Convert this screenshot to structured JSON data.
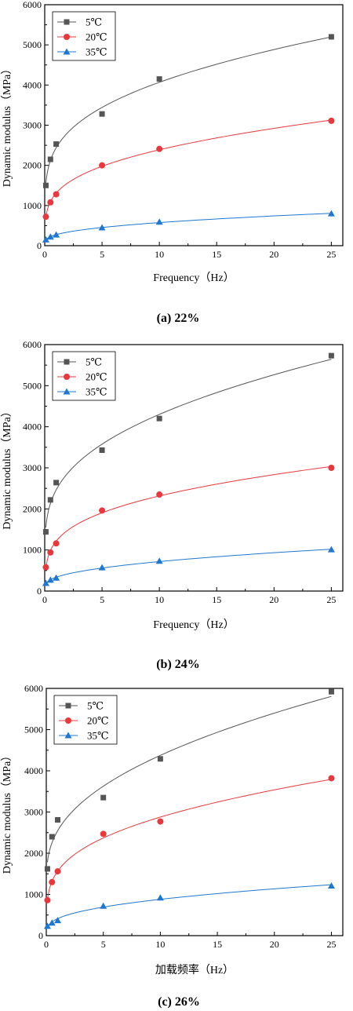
{
  "chart_data": [
    {
      "type": "scatter",
      "caption": "(a) 22%",
      "xlabel": "Frequency（Hz）",
      "ylabel": "Dynamic modulus（MPa）",
      "xlim": [
        0,
        26
      ],
      "ylim": [
        0,
        6000
      ],
      "xticks": [
        "0",
        "5",
        "10",
        "15",
        "20",
        "25"
      ],
      "yticks": [
        "0",
        "1000",
        "2000",
        "3000",
        "4000",
        "5000",
        "6000"
      ],
      "grid": false,
      "legend": "top-left",
      "x": [
        0.1,
        0.5,
        1,
        5,
        10,
        25
      ],
      "series": [
        {
          "name": "5℃",
          "values": [
            1500,
            2150,
            2530,
            3280,
            4150,
            5200
          ],
          "color": "#555555",
          "marker": "square"
        },
        {
          "name": "20℃",
          "values": [
            720,
            1080,
            1280,
            2000,
            2410,
            3110
          ],
          "color": "#e8383d",
          "marker": "circle"
        },
        {
          "name": "35℃",
          "values": [
            150,
            220,
            270,
            450,
            590,
            800
          ],
          "color": "#1f77d0",
          "marker": "triangle"
        }
      ]
    },
    {
      "type": "scatter",
      "caption": "(b) 24%",
      "xlabel": "Frequency（Hz）",
      "ylabel": "Dynamic modulus（MPa）",
      "xlim": [
        0,
        26
      ],
      "ylim": [
        0,
        6000
      ],
      "xticks": [
        "0",
        "5",
        "10",
        "15",
        "20",
        "25"
      ],
      "yticks": [
        "0",
        "1000",
        "2000",
        "3000",
        "4000",
        "5000",
        "6000"
      ],
      "grid": false,
      "legend": "top-left",
      "x": [
        0.1,
        0.5,
        1,
        5,
        10,
        25
      ],
      "series": [
        {
          "name": "5℃",
          "values": [
            1440,
            2220,
            2640,
            3430,
            4200,
            5730
          ],
          "color": "#555555",
          "marker": "square"
        },
        {
          "name": "20℃",
          "values": [
            580,
            940,
            1160,
            1960,
            2350,
            3000
          ],
          "color": "#e8383d",
          "marker": "circle"
        },
        {
          "name": "35℃",
          "values": [
            190,
            270,
            320,
            570,
            730,
            1010
          ],
          "color": "#1f77d0",
          "marker": "triangle"
        }
      ]
    },
    {
      "type": "scatter",
      "caption": "(c) 26%",
      "xlabel": "加载频率（Hz）",
      "ylabel": "Dynamic modulus（MPa）",
      "xlim": [
        0,
        26
      ],
      "ylim": [
        0,
        6000
      ],
      "xticks": [
        "0",
        "5",
        "10",
        "15",
        "20",
        "25"
      ],
      "yticks": [
        "0",
        "1000",
        "2000",
        "3000",
        "4000",
        "5000",
        "6000"
      ],
      "grid": false,
      "legend": "top-left",
      "x": [
        0.1,
        0.5,
        1,
        5,
        10,
        25
      ],
      "series": [
        {
          "name": "5℃",
          "values": [
            1620,
            2400,
            2810,
            3350,
            4290,
            5920
          ],
          "color": "#555555",
          "marker": "square"
        },
        {
          "name": "20℃",
          "values": [
            860,
            1300,
            1560,
            2470,
            2770,
            3820
          ],
          "color": "#e8383d",
          "marker": "circle"
        },
        {
          "name": "35℃",
          "values": [
            230,
            310,
            370,
            720,
            920,
            1210
          ],
          "color": "#1f77d0",
          "marker": "triangle"
        }
      ]
    }
  ]
}
